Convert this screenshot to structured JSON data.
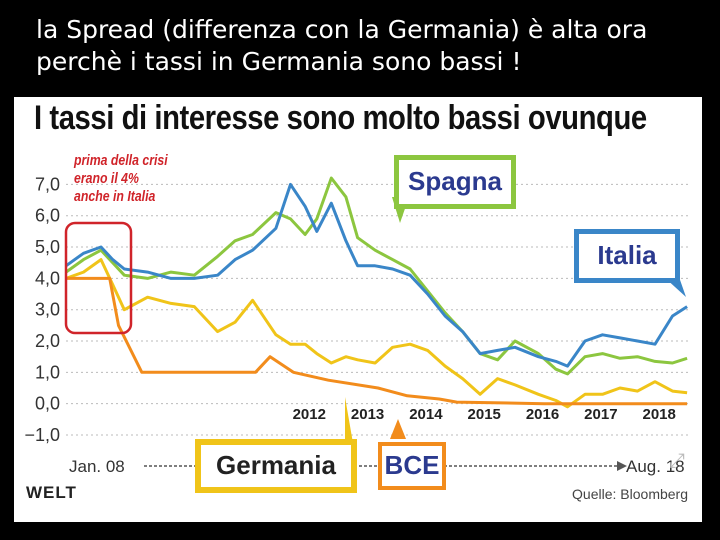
{
  "slide_title": "la Spread (differenza con la Germania) è alta ora perchè i tassi in Germania sono bassi !",
  "chart_title": "I tassi di interesse sono molto bassi ovunque",
  "note_lines": [
    "prima della crisi",
    "erano il 4%",
    "anche in Italia"
  ],
  "callouts": {
    "spagna": "Spagna",
    "italia": "Italia",
    "germania": "Germania",
    "bce": "BCE"
  },
  "logo": "WELT",
  "source": "Quelle: Bloomberg",
  "colors": {
    "spagna": "#8cc63f",
    "italia": "#3a86c8",
    "germania": "#f0c419",
    "bce": "#f28c1c",
    "highlight_box": "#d0242a"
  },
  "chart_data": {
    "type": "line",
    "y_ticks": [
      "7,0",
      "6,0",
      "5,0",
      "4,0",
      "3,0",
      "2,0",
      "1,0",
      "0,0",
      "−1,0"
    ],
    "ylim": [
      -1,
      7.3
    ],
    "xlim": [
      2008.0,
      2018.7
    ],
    "x_start_label": "Jan. 08",
    "x_end_label": "Aug. 18",
    "year_labels": [
      {
        "year": 2012,
        "label": "2012"
      },
      {
        "year": 2013,
        "label": "2013"
      },
      {
        "year": 2014,
        "label": "2014"
      },
      {
        "year": 2015,
        "label": "2015"
      },
      {
        "year": 2016,
        "label": "2016"
      },
      {
        "year": 2017,
        "label": "2017"
      },
      {
        "year": 2018,
        "label": "2018"
      }
    ],
    "series": [
      {
        "name": "Spagna",
        "color": "#8cc63f",
        "x": [
          2008.0,
          2008.3,
          2008.6,
          2008.8,
          2009.0,
          2009.4,
          2009.8,
          2010.2,
          2010.6,
          2010.9,
          2011.2,
          2011.6,
          2011.85,
          2012.1,
          2012.3,
          2012.55,
          2012.8,
          2013.0,
          2013.3,
          2013.6,
          2013.9,
          2014.2,
          2014.5,
          2014.8,
          2015.1,
          2015.4,
          2015.7,
          2016.1,
          2016.4,
          2016.6,
          2016.9,
          2017.2,
          2017.5,
          2017.8,
          2018.1,
          2018.4,
          2018.65
        ],
        "y": [
          4.2,
          4.6,
          4.9,
          4.5,
          4.1,
          4.0,
          4.2,
          4.1,
          4.7,
          5.2,
          5.4,
          6.1,
          5.9,
          5.4,
          5.9,
          7.2,
          6.6,
          5.3,
          4.9,
          4.6,
          4.3,
          3.6,
          2.9,
          2.3,
          1.6,
          1.4,
          2.0,
          1.6,
          1.1,
          0.95,
          1.5,
          1.6,
          1.45,
          1.5,
          1.35,
          1.3,
          1.45
        ]
      },
      {
        "name": "Italia",
        "color": "#3a86c8",
        "x": [
          2008.0,
          2008.3,
          2008.6,
          2008.8,
          2009.0,
          2009.4,
          2009.8,
          2010.2,
          2010.6,
          2010.9,
          2011.2,
          2011.6,
          2011.85,
          2012.1,
          2012.3,
          2012.55,
          2012.8,
          2013.0,
          2013.3,
          2013.6,
          2013.9,
          2014.2,
          2014.5,
          2014.8,
          2015.1,
          2015.4,
          2015.7,
          2016.1,
          2016.4,
          2016.6,
          2016.9,
          2017.2,
          2017.5,
          2017.8,
          2018.1,
          2018.4,
          2018.65
        ],
        "y": [
          4.4,
          4.8,
          5.0,
          4.6,
          4.3,
          4.2,
          4.0,
          4.0,
          4.1,
          4.6,
          4.9,
          5.6,
          7.0,
          6.3,
          5.5,
          6.4,
          5.2,
          4.4,
          4.4,
          4.3,
          4.1,
          3.5,
          2.8,
          2.3,
          1.6,
          1.7,
          1.8,
          1.5,
          1.35,
          1.2,
          2.0,
          2.2,
          2.1,
          2.0,
          1.9,
          2.8,
          3.1
        ]
      },
      {
        "name": "Germania",
        "color": "#f0c419",
        "x": [
          2008.0,
          2008.3,
          2008.6,
          2008.8,
          2009.0,
          2009.4,
          2009.8,
          2010.2,
          2010.6,
          2010.9,
          2011.2,
          2011.6,
          2011.85,
          2012.1,
          2012.3,
          2012.55,
          2012.8,
          2013.0,
          2013.3,
          2013.6,
          2013.9,
          2014.2,
          2014.5,
          2014.8,
          2015.1,
          2015.4,
          2015.7,
          2016.1,
          2016.4,
          2016.6,
          2016.9,
          2017.2,
          2017.5,
          2017.8,
          2018.1,
          2018.4,
          2018.65
        ],
        "y": [
          4.0,
          4.2,
          4.6,
          3.8,
          3.0,
          3.4,
          3.2,
          3.1,
          2.3,
          2.6,
          3.3,
          2.2,
          1.9,
          1.9,
          1.6,
          1.3,
          1.5,
          1.4,
          1.3,
          1.8,
          1.9,
          1.7,
          1.2,
          0.8,
          0.3,
          0.8,
          0.6,
          0.3,
          0.1,
          -0.1,
          0.3,
          0.3,
          0.5,
          0.4,
          0.7,
          0.4,
          0.35
        ]
      },
      {
        "name": "BCE",
        "color": "#f28c1c",
        "x": [
          2008.0,
          2008.75,
          2008.9,
          2009.3,
          2011.25,
          2011.5,
          2011.9,
          2012.5,
          2013.35,
          2013.85,
          2014.4,
          2014.7,
          2016.2,
          2018.65
        ],
        "y": [
          4.0,
          4.0,
          2.5,
          1.0,
          1.0,
          1.5,
          1.0,
          0.75,
          0.5,
          0.25,
          0.15,
          0.05,
          0.0,
          0.0
        ]
      }
    ]
  }
}
